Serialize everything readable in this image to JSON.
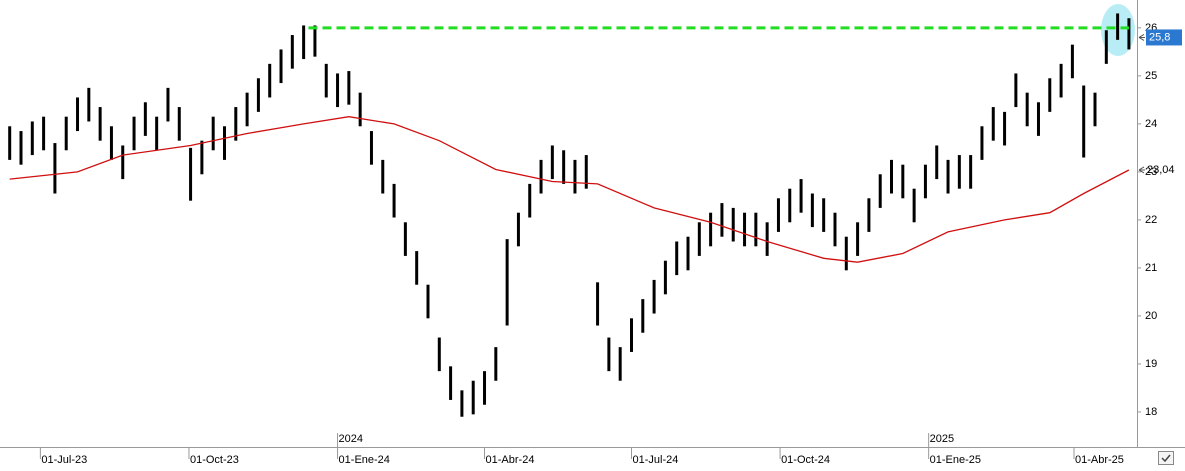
{
  "chart_data": {
    "type": "ohlc",
    "color": "#000000",
    "x": [
      "2023-06-12",
      "2023-06-19",
      "2023-06-26",
      "2023-07-03",
      "2023-07-10",
      "2023-07-17",
      "2023-07-24",
      "2023-07-31",
      "2023-08-07",
      "2023-08-14",
      "2023-08-21",
      "2023-08-28",
      "2023-09-04",
      "2023-09-11",
      "2023-09-18",
      "2023-09-25",
      "2023-10-02",
      "2023-10-09",
      "2023-10-16",
      "2023-10-23",
      "2023-10-30",
      "2023-11-06",
      "2023-11-13",
      "2023-11-20",
      "2023-11-27",
      "2023-12-04",
      "2023-12-11",
      "2023-12-18",
      "2023-12-25",
      "2024-01-01",
      "2024-01-08",
      "2024-01-15",
      "2024-01-22",
      "2024-01-29",
      "2024-02-05",
      "2024-02-12",
      "2024-02-19",
      "2024-02-26",
      "2024-03-04",
      "2024-03-11",
      "2024-03-18",
      "2024-03-25",
      "2024-04-01",
      "2024-04-08",
      "2024-04-15",
      "2024-04-22",
      "2024-04-29",
      "2024-05-06",
      "2024-05-13",
      "2024-05-20",
      "2024-05-27",
      "2024-06-03",
      "2024-06-10",
      "2024-06-17",
      "2024-06-24",
      "2024-07-01",
      "2024-07-08",
      "2024-07-15",
      "2024-07-22",
      "2024-07-29",
      "2024-08-05",
      "2024-08-12",
      "2024-08-19",
      "2024-08-26",
      "2024-09-02",
      "2024-09-09",
      "2024-09-16",
      "2024-09-23",
      "2024-09-30",
      "2024-10-07",
      "2024-10-14",
      "2024-10-21",
      "2024-10-28",
      "2024-11-04",
      "2024-11-11",
      "2024-11-18",
      "2024-11-25",
      "2024-12-02",
      "2024-12-09",
      "2024-12-16",
      "2024-12-23",
      "2024-12-30",
      "2025-01-06",
      "2025-01-13",
      "2025-01-20",
      "2025-01-27",
      "2025-02-03",
      "2025-02-10",
      "2025-02-17",
      "2025-02-24",
      "2025-03-03",
      "2025-03-10",
      "2025-03-17",
      "2025-03-24",
      "2025-03-31",
      "2025-04-07",
      "2025-04-14",
      "2025-04-21",
      "2025-04-28",
      "2025-05-05"
    ],
    "high": [
      23.95,
      23.85,
      24.05,
      24.15,
      23.6,
      24.15,
      24.55,
      24.75,
      24.35,
      23.95,
      23.55,
      24.15,
      24.45,
      24.15,
      24.75,
      24.35,
      23.5,
      23.65,
      24.15,
      23.95,
      24.35,
      24.65,
      24.95,
      25.25,
      25.55,
      25.85,
      26.05,
      26.05,
      25.25,
      25.05,
      25.1,
      24.65,
      23.85,
      23.25,
      22.75,
      21.95,
      21.35,
      20.65,
      19.55,
      18.95,
      18.45,
      18.65,
      18.85,
      19.35,
      21.6,
      22.15,
      22.75,
      23.25,
      23.55,
      23.45,
      23.25,
      23.35,
      20.7,
      19.55,
      19.35,
      19.95,
      20.35,
      20.75,
      21.15,
      21.55,
      21.65,
      21.95,
      22.15,
      22.35,
      22.25,
      22.15,
      22.15,
      21.95,
      22.45,
      22.65,
      22.85,
      22.55,
      22.45,
      22.15,
      21.65,
      21.95,
      22.45,
      22.95,
      23.25,
      23.15,
      22.65,
      23.15,
      23.55,
      23.25,
      23.35,
      23.35,
      23.95,
      24.35,
      24.25,
      25.05,
      24.65,
      24.45,
      24.95,
      25.25,
      25.65,
      24.8,
      24.65,
      25.95,
      26.3,
      26.2
    ],
    "low": [
      23.25,
      23.15,
      23.35,
      23.45,
      22.55,
      23.45,
      23.85,
      24.05,
      23.65,
      23.25,
      22.85,
      23.45,
      23.75,
      23.45,
      24.05,
      23.65,
      22.4,
      22.95,
      23.45,
      23.25,
      23.65,
      23.95,
      24.25,
      24.55,
      24.85,
      25.15,
      25.35,
      25.4,
      24.55,
      24.35,
      24.4,
      23.95,
      23.15,
      22.55,
      22.05,
      21.25,
      20.65,
      19.95,
      18.85,
      18.25,
      17.9,
      17.95,
      18.15,
      18.65,
      19.8,
      21.45,
      22.05,
      22.55,
      22.85,
      22.75,
      22.55,
      22.65,
      19.8,
      18.85,
      18.65,
      19.25,
      19.65,
      20.05,
      20.45,
      20.85,
      20.95,
      21.25,
      21.45,
      21.65,
      21.55,
      21.45,
      21.45,
      21.25,
      21.75,
      21.95,
      22.15,
      21.85,
      21.75,
      21.45,
      20.95,
      21.25,
      21.75,
      22.25,
      22.55,
      22.45,
      21.95,
      22.45,
      22.85,
      22.55,
      22.65,
      22.65,
      23.25,
      23.65,
      23.55,
      24.35,
      23.95,
      23.75,
      24.25,
      24.55,
      24.95,
      23.3,
      23.95,
      25.25,
      25.75,
      25.55
    ],
    "moving_average": {
      "color": "#d01010",
      "x": [
        "2023-06-12",
        "2023-07-24",
        "2023-08-21",
        "2023-10-02",
        "2023-11-06",
        "2023-12-11",
        "2024-01-08",
        "2024-02-05",
        "2024-03-04",
        "2024-04-08",
        "2024-05-13",
        "2024-06-10",
        "2024-07-15",
        "2024-08-19",
        "2024-09-23",
        "2024-10-28",
        "2024-11-18",
        "2024-12-16",
        "2025-01-13",
        "2025-02-17",
        "2025-03-17",
        "2025-04-07",
        "2025-05-05"
      ],
      "values": [
        22.85,
        23.0,
        23.35,
        23.55,
        23.8,
        24.0,
        24.15,
        24.0,
        23.65,
        23.05,
        22.8,
        22.75,
        22.25,
        21.95,
        21.55,
        21.2,
        21.12,
        21.3,
        21.75,
        22.0,
        22.15,
        22.55,
        23.04
      ]
    },
    "resistance": {
      "value": 26,
      "x": [
        "2023-12-14",
        "2025-05-05"
      ],
      "color": "#22dd22"
    },
    "last_labels": [
      {
        "value": 25.8,
        "label": "25,8",
        "color": "#2a78d0"
      },
      {
        "value": 23.04,
        "label": "23,04"
      }
    ],
    "xlim": [
      "2023-06-06",
      "2025-05-10"
    ],
    "xticks": [
      {
        "value": "2023-07-01",
        "label": "01-Jul-23"
      },
      {
        "value": "2023-10-01",
        "label": "01-Oct-23"
      },
      {
        "value": "2024-01-01",
        "label": "01-Ene-24"
      },
      {
        "value": "2024-04-01",
        "label": "01-Abr-24"
      },
      {
        "value": "2024-07-01",
        "label": "01-Jul-24"
      },
      {
        "value": "2024-10-01",
        "label": "01-Oct-24"
      },
      {
        "value": "2025-01-01",
        "label": "01-Ene-25"
      },
      {
        "value": "2025-04-01",
        "label": "01-Abr-25"
      }
    ],
    "year_labels": [
      {
        "value": "2024-01-01",
        "label": "2024"
      },
      {
        "value": "2025-01-01",
        "label": "2025"
      }
    ],
    "ylim": [
      17.27,
      26.58
    ],
    "yticks": [
      18,
      19,
      20,
      21,
      22,
      23,
      24,
      25,
      26
    ]
  }
}
